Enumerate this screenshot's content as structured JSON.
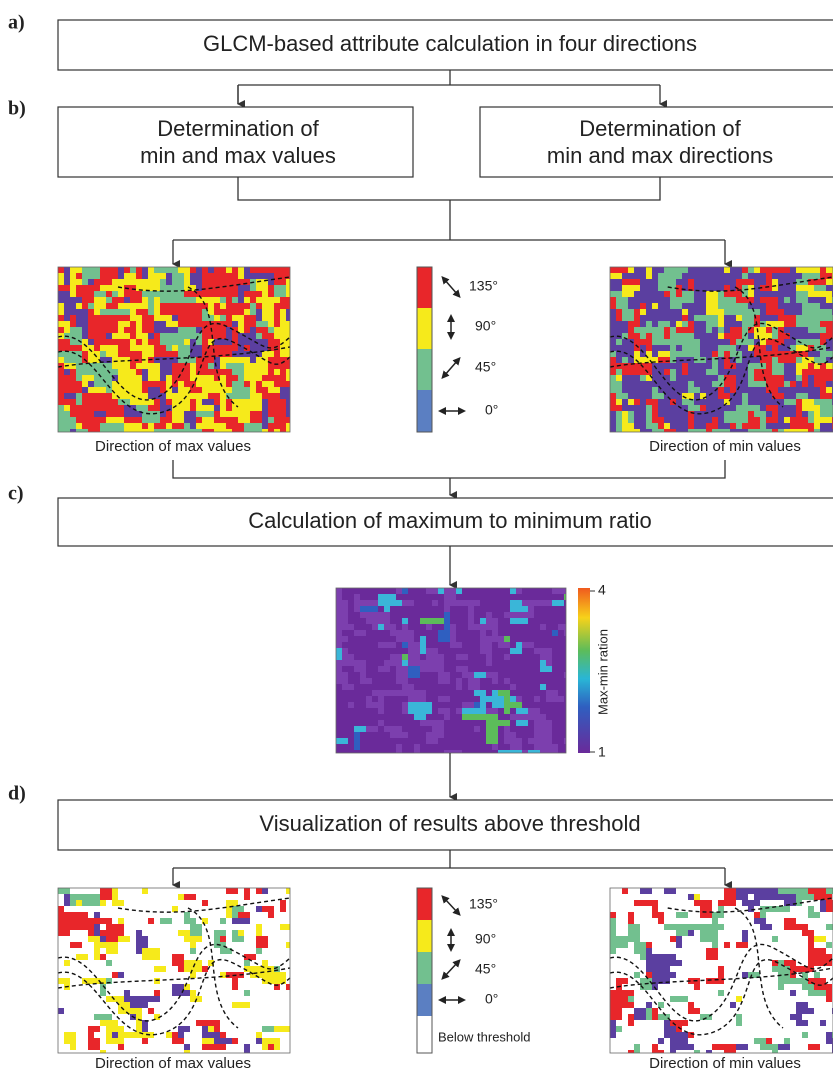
{
  "panel_labels": [
    "a)",
    "b)",
    "c)",
    "d)"
  ],
  "boxes": {
    "attribute_calculation": "GLCM-based attribute calculation in four directions",
    "min_max_values": [
      "Determination of",
      "min and max values"
    ],
    "min_max_directions": [
      "Determination of",
      "min and max directions"
    ],
    "ratio_calculation": "Calculation of maximum to minimum ratio",
    "visualization": "Visualization of results above threshold"
  },
  "captions": [
    "Direction of max values",
    "Direction of min values",
    "Direction of max values",
    "Direction of min values"
  ],
  "direction_legend": {
    "labels": [
      "135°",
      "90°",
      "45°",
      "0°"
    ],
    "below_threshold": "Below threshold"
  },
  "ratio_colorbar": {
    "label": "Max-min ration",
    "max_label": "4",
    "min_label": "1"
  }
}
